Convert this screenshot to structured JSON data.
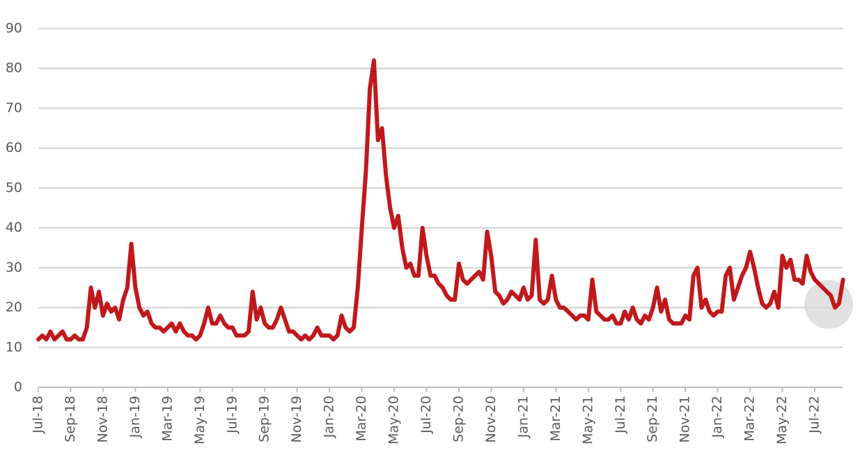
{
  "chart_data": {
    "type": "line",
    "categories": [
      "Jul-18",
      null,
      null,
      null,
      null,
      null,
      null,
      null,
      "Sep-18",
      null,
      null,
      null,
      null,
      null,
      null,
      null,
      "Nov-18",
      null,
      null,
      null,
      null,
      null,
      null,
      null,
      "Jan-19",
      null,
      null,
      null,
      null,
      null,
      null,
      null,
      "Mar-19",
      null,
      null,
      null,
      null,
      null,
      null,
      null,
      "May-19",
      null,
      null,
      null,
      null,
      null,
      null,
      null,
      "Jul-19",
      null,
      null,
      null,
      null,
      null,
      null,
      null,
      "Sep-19",
      null,
      null,
      null,
      null,
      null,
      null,
      null,
      "Nov-19",
      null,
      null,
      null,
      null,
      null,
      null,
      null,
      "Jan-20",
      null,
      null,
      null,
      null,
      null,
      null,
      null,
      "Mar-20",
      null,
      null,
      null,
      null,
      null,
      null,
      null,
      "May-20",
      null,
      null,
      null,
      null,
      null,
      null,
      null,
      "Jul-20",
      null,
      null,
      null,
      null,
      null,
      null,
      null,
      "Sep-20",
      null,
      null,
      null,
      null,
      null,
      null,
      null,
      "Nov-20",
      null,
      null,
      null,
      null,
      null,
      null,
      null,
      "Jan-21",
      null,
      null,
      null,
      null,
      null,
      null,
      null,
      "Mar-21",
      null,
      null,
      null,
      null,
      null,
      null,
      null,
      "May-21",
      null,
      null,
      null,
      null,
      null,
      null,
      null,
      "Jul-21",
      null,
      null,
      null,
      null,
      null,
      null,
      null,
      "Sep-21",
      null,
      null,
      null,
      null,
      null,
      null,
      null,
      "Nov-21",
      null,
      null,
      null,
      null,
      null,
      null,
      null,
      "Jan-22",
      null,
      null,
      null,
      null,
      null,
      null,
      null,
      "Mar-22",
      null,
      null,
      null,
      null,
      null,
      null,
      null,
      "May-22",
      null,
      null,
      null,
      null,
      null,
      null,
      null,
      "Jul-22",
      null,
      null,
      null,
      null,
      null,
      null,
      null
    ],
    "values": [
      12,
      13,
      12,
      14,
      12,
      13,
      14,
      12,
      12,
      13,
      12,
      12,
      15,
      25,
      20,
      24,
      18,
      21,
      19,
      20,
      17,
      22,
      25,
      36,
      25,
      20,
      18,
      19,
      16,
      15,
      15,
      14,
      15,
      16,
      14,
      16,
      14,
      13,
      13,
      12,
      13,
      16,
      20,
      16,
      16,
      18,
      16,
      15,
      15,
      13,
      13,
      13,
      14,
      24,
      17,
      20,
      16,
      15,
      15,
      17,
      20,
      17,
      14,
      14,
      13,
      12,
      13,
      12,
      13,
      15,
      13,
      13,
      13,
      12,
      13,
      18,
      15,
      14,
      15,
      25,
      40,
      54,
      75,
      82,
      62,
      65,
      53,
      45,
      40,
      43,
      35,
      30,
      31,
      28,
      28,
      40,
      33,
      28,
      28,
      26,
      25,
      23,
      22,
      22,
      31,
      27,
      26,
      27,
      28,
      29,
      27,
      39,
      33,
      24,
      23,
      21,
      22,
      24,
      23,
      22,
      25,
      22,
      23,
      37,
      22,
      21,
      22,
      28,
      22,
      20,
      20,
      19,
      18,
      17,
      18,
      18,
      17,
      27,
      19,
      18,
      17,
      17,
      18,
      16,
      16,
      19,
      17,
      20,
      17,
      16,
      18,
      17,
      20,
      25,
      19,
      22,
      17,
      16,
      16,
      16,
      18,
      17,
      28,
      30,
      20,
      22,
      19,
      18,
      19,
      19,
      28,
      30,
      22,
      25,
      28,
      30,
      34,
      30,
      25,
      21,
      20,
      21,
      24,
      20,
      33,
      30,
      32,
      27,
      27,
      26,
      33,
      29,
      27,
      26,
      25,
      24,
      23,
      20,
      21,
      27
    ],
    "color": "#c0191c",
    "ylim": [
      0,
      90
    ],
    "yticks": [
      0,
      10,
      20,
      30,
      40,
      50,
      60,
      70,
      80,
      90
    ],
    "grid": true
  }
}
